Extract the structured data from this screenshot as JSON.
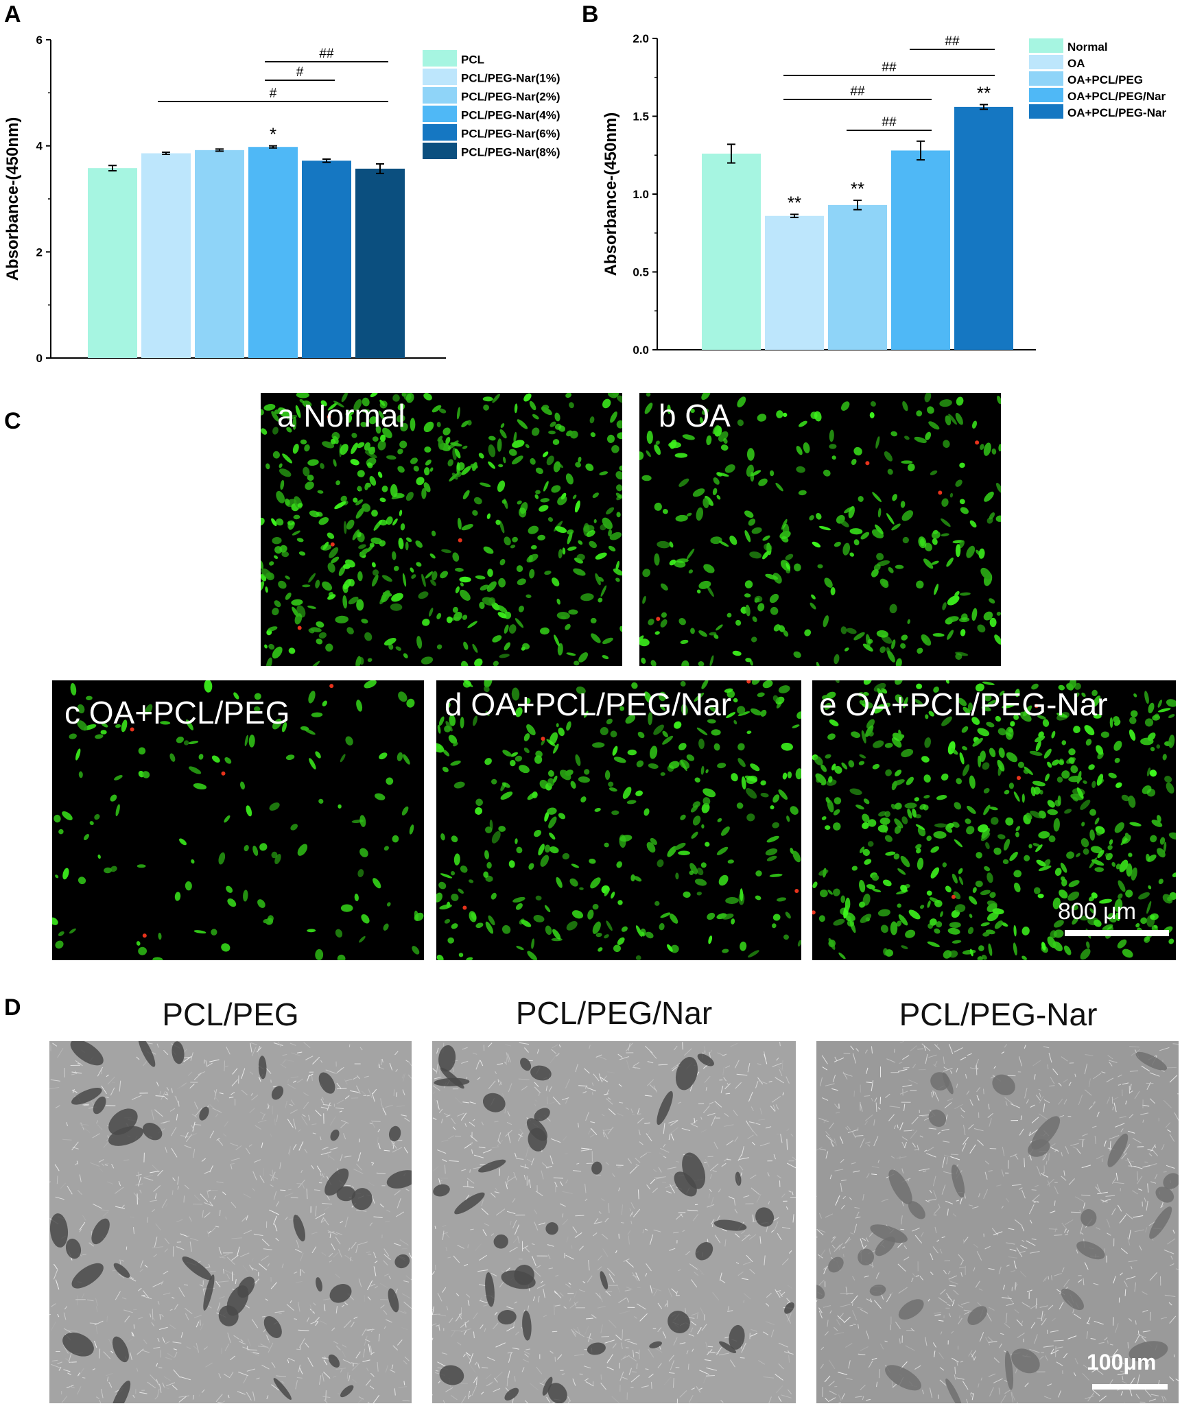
{
  "panels": {
    "A": "A",
    "B": "B",
    "C": "C",
    "D": "D"
  },
  "colors": {
    "c1": "#a6f5e1",
    "c2": "#bde6fc",
    "c3": "#8fd4f8",
    "c4": "#4fb8f6",
    "c5": "#1577c2",
    "c6": "#0b4f7f",
    "fluor_green": "#33dd22",
    "fluor_red": "#e8331c"
  },
  "chart_data": [
    {
      "type": "bar",
      "panel": "A",
      "categories": [
        "PCL",
        "PCL/PEG-Nar(1%)",
        "PCL/PEG-Nar(2%)",
        "PCL/PEG-Nar(4%)",
        "PCL/PEG-Nar(6%)",
        "PCL/PEG-Nar(8%)"
      ],
      "values": [
        3.58,
        3.86,
        3.92,
        3.98,
        3.72,
        3.57
      ],
      "errors": [
        0.05,
        0.02,
        0.02,
        0.02,
        0.03,
        0.09
      ],
      "sig_markers": [
        "",
        "",
        "",
        "*",
        "",
        ""
      ],
      "brackets": [
        {
          "from": 3,
          "to": 5,
          "label": "##"
        },
        {
          "from": 3,
          "to": 4,
          "label": "#"
        },
        {
          "from": 1,
          "to": 5,
          "label": "#"
        }
      ],
      "ylabel": "Absorbance-(450nm)",
      "ylim": [
        0,
        6
      ],
      "yticks": [
        "0",
        "2",
        "4",
        "6"
      ],
      "legend": [
        "PCL",
        "PCL/PEG-Nar(1%)",
        "PCL/PEG-Nar(2%)",
        "PCL/PEG-Nar(4%)",
        "PCL/PEG-Nar(6%)",
        "PCL/PEG-Nar(8%)"
      ],
      "legend_placement": "right"
    },
    {
      "type": "bar",
      "panel": "B",
      "categories": [
        "Normal",
        "OA",
        "OA+PCL/PEG",
        "OA+PCL/PEG/Nar",
        "OA+PCL/PEG-Nar"
      ],
      "values": [
        1.26,
        0.86,
        0.93,
        1.28,
        1.56
      ],
      "errors": [
        0.06,
        0.01,
        0.03,
        0.06,
        0.015
      ],
      "sig_markers": [
        "",
        "**",
        "**",
        "",
        "**"
      ],
      "brackets": [
        {
          "from": 3,
          "to": 4,
          "label": "##"
        },
        {
          "from": 1,
          "to": 4,
          "label": "##"
        },
        {
          "from": 1,
          "to": 3,
          "label": "##"
        },
        {
          "from": 2,
          "to": 3,
          "label": "##"
        }
      ],
      "ylabel": "Absorbance-(450nm)",
      "ylim": [
        0,
        2
      ],
      "yticks": [
        "0.0",
        "0.5",
        "1.0",
        "1.5",
        "2.0"
      ],
      "legend": [
        "Normal",
        "OA",
        "OA+PCL/PEG",
        "OA+PCL/PEG/Nar",
        "OA+PCL/PEG-Nar"
      ],
      "legend_placement": "right"
    }
  ],
  "fluorescence": {
    "images": [
      {
        "label": "a Normal",
        "density": 0.9
      },
      {
        "label": "b  OA",
        "density": 0.55
      },
      {
        "label": "c  OA+PCL/PEG",
        "density": 0.25
      },
      {
        "label": "d  OA+PCL/PEG/Nar",
        "density": 0.6
      },
      {
        "label": "e  OA+PCL/PEG-Nar",
        "density": 0.95
      }
    ],
    "scale_label": "800 μm"
  },
  "sem": {
    "titles": [
      "PCL/PEG",
      "PCL/PEG/Nar",
      "PCL/PEG-Nar"
    ],
    "scale_label": "100μm"
  }
}
